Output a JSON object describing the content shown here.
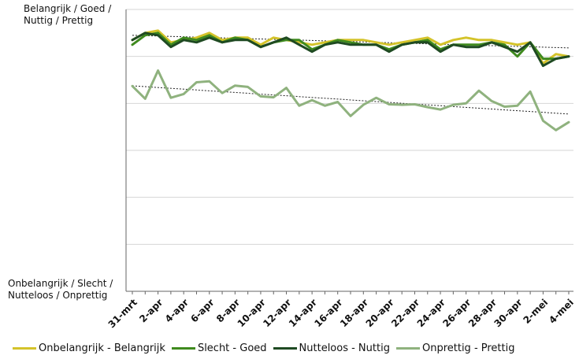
{
  "chart_data": {
    "type": "line",
    "title": "",
    "xlabel": "",
    "ylabel": "",
    "y_top_label_line1": "Belangrijk / Goed /",
    "y_top_label_line2": "Nuttig / Prettig",
    "y_bottom_label_line1": "Onbelangrijk / Slecht /",
    "y_bottom_label_line2": "Nutteloos / Onprettig",
    "ylim": [
      1,
      7
    ],
    "grid": true,
    "legend_position": "bottom",
    "trendlines": true,
    "categories": [
      "31-mrt",
      "1-apr",
      "2-apr",
      "3-apr",
      "4-apr",
      "5-apr",
      "6-apr",
      "7-apr",
      "8-apr",
      "9-apr",
      "10-apr",
      "11-apr",
      "12-apr",
      "13-apr",
      "14-apr",
      "15-apr",
      "16-apr",
      "17-apr",
      "18-apr",
      "19-apr",
      "20-apr",
      "21-apr",
      "22-apr",
      "23-apr",
      "24-apr",
      "25-apr",
      "26-apr",
      "27-apr",
      "28-apr",
      "29-apr",
      "30-apr",
      "1-mei",
      "2-mei",
      "3-mei",
      "4-mei"
    ],
    "x_tick_labels": [
      "31-mrt",
      "2-apr",
      "4-apr",
      "6-apr",
      "8-apr",
      "10-apr",
      "12-apr",
      "14-apr",
      "16-apr",
      "18-apr",
      "20-apr",
      "22-apr",
      "24-apr",
      "26-apr",
      "28-apr",
      "30-apr",
      "2-mei",
      "4-mei"
    ],
    "series": [
      {
        "name": "Onbelangrijk - Belangrijk",
        "color": "#d4c32a",
        "values": [
          6.35,
          6.5,
          6.55,
          6.3,
          6.35,
          6.4,
          6.5,
          6.35,
          6.4,
          6.4,
          6.25,
          6.4,
          6.35,
          6.3,
          6.25,
          6.3,
          6.35,
          6.35,
          6.35,
          6.3,
          6.25,
          6.3,
          6.35,
          6.4,
          6.25,
          6.35,
          6.4,
          6.35,
          6.35,
          6.3,
          6.25,
          6.3,
          5.85,
          6.05,
          6.0
        ]
      },
      {
        "name": "Slecht - Goed",
        "color": "#3f8a1e",
        "values": [
          6.25,
          6.45,
          6.5,
          6.25,
          6.4,
          6.35,
          6.45,
          6.3,
          6.4,
          6.35,
          6.2,
          6.3,
          6.35,
          6.35,
          6.15,
          6.25,
          6.35,
          6.3,
          6.25,
          6.25,
          6.15,
          6.25,
          6.3,
          6.35,
          6.15,
          6.25,
          6.25,
          6.25,
          6.3,
          6.25,
          6.0,
          6.3,
          5.95,
          5.95,
          6.0
        ]
      },
      {
        "name": "Nutteloos - Nuttig",
        "color": "#1f4a22",
        "values": [
          6.35,
          6.5,
          6.45,
          6.2,
          6.35,
          6.3,
          6.4,
          6.3,
          6.35,
          6.35,
          6.2,
          6.3,
          6.4,
          6.25,
          6.1,
          6.25,
          6.3,
          6.25,
          6.25,
          6.25,
          6.1,
          6.25,
          6.3,
          6.3,
          6.1,
          6.25,
          6.2,
          6.2,
          6.3,
          6.2,
          6.1,
          6.3,
          5.8,
          5.95,
          6.0
        ]
      },
      {
        "name": "Onprettig - Prettig",
        "color": "#8fb27e",
        "values": [
          5.37,
          5.1,
          5.7,
          5.12,
          5.2,
          5.45,
          5.47,
          5.22,
          5.38,
          5.35,
          5.15,
          5.13,
          5.33,
          4.95,
          5.07,
          4.95,
          5.03,
          4.73,
          4.97,
          5.12,
          4.98,
          4.97,
          4.98,
          4.92,
          4.87,
          4.97,
          5.0,
          5.27,
          5.05,
          4.93,
          4.95,
          5.25,
          4.63,
          4.43,
          4.6
        ]
      }
    ]
  },
  "legend": {
    "items": [
      {
        "label": "Onbelangrijk - Belangrijk",
        "color": "#d4c32a"
      },
      {
        "label": "Slecht - Goed",
        "color": "#3f8a1e"
      },
      {
        "label": "Nutteloos - Nuttig",
        "color": "#1f4a22"
      },
      {
        "label": "Onprettig - Prettig",
        "color": "#8fb27e"
      }
    ]
  }
}
